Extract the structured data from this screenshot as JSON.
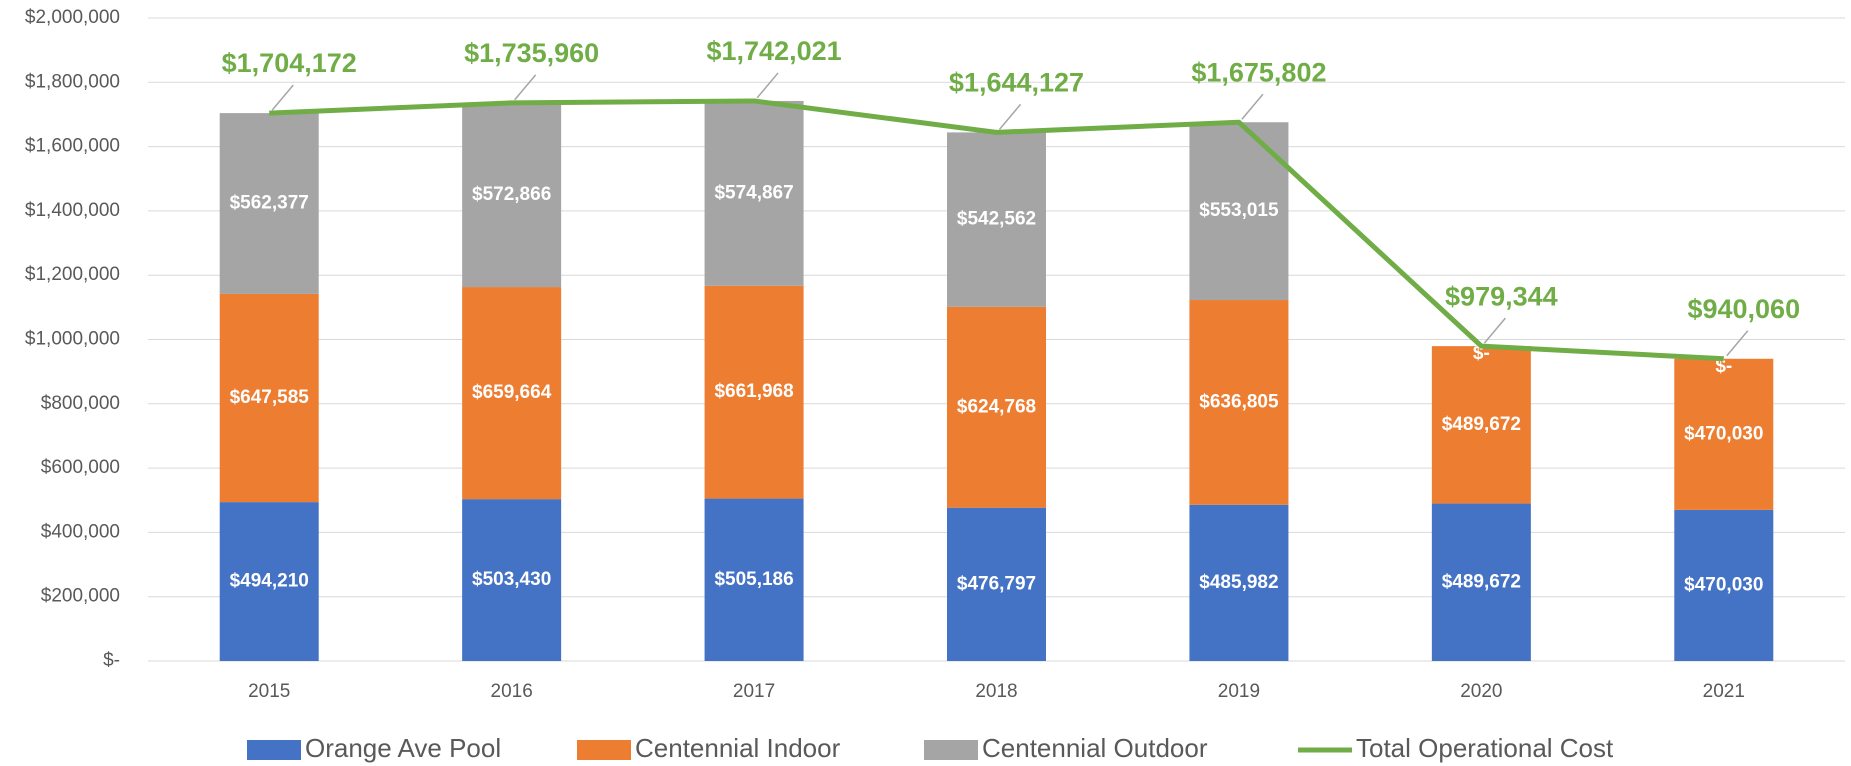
{
  "chart_data": {
    "type": "bar",
    "stacked": true,
    "categories": [
      "2015",
      "2016",
      "2017",
      "2018",
      "2019",
      "2020",
      "2021"
    ],
    "ylim": [
      0,
      2000000
    ],
    "yticks": [
      {
        "value": 0,
        "label": "$-"
      },
      {
        "value": 200000,
        "label": "$200,000"
      },
      {
        "value": 400000,
        "label": "$400,000"
      },
      {
        "value": 600000,
        "label": "$600,000"
      },
      {
        "value": 800000,
        "label": "$800,000"
      },
      {
        "value": 1000000,
        "label": "$1,000,000"
      },
      {
        "value": 1200000,
        "label": "$1,200,000"
      },
      {
        "value": 1400000,
        "label": "$1,400,000"
      },
      {
        "value": 1600000,
        "label": "$1,600,000"
      },
      {
        "value": 1800000,
        "label": "$1,800,000"
      },
      {
        "value": 2000000,
        "label": "$2,000,000"
      }
    ],
    "grid": true,
    "legend": "bottom",
    "series": [
      {
        "name": "Orange Ave Pool",
        "color": "#4472c4",
        "type": "bar",
        "values": [
          494210,
          503430,
          505186,
          476797,
          485982,
          489672,
          470030
        ],
        "value_labels": [
          "$494,210",
          "$503,430",
          "$505,186",
          "$476,797",
          "$485,982",
          "$489,672",
          "$470,030"
        ]
      },
      {
        "name": "Centennial Indoor",
        "color": "#ed7d31",
        "type": "bar",
        "values": [
          647585,
          659664,
          661968,
          624768,
          636805,
          489672,
          470030
        ],
        "value_labels": [
          "$647,585",
          "$659,664",
          "$661,968",
          "$624,768",
          "$636,805",
          "$489,672",
          "$470,030"
        ]
      },
      {
        "name": "Centennial Outdoor",
        "color": "#a5a5a5",
        "type": "bar",
        "values": [
          562377,
          572866,
          574867,
          542562,
          553015,
          0,
          0
        ],
        "value_labels": [
          "$562,377",
          "$572,866",
          "$574,867",
          "$542,562",
          "$553,015",
          "$-",
          "$-"
        ]
      },
      {
        "name": "Total Operational Cost",
        "color": "#70ad47",
        "type": "line",
        "values": [
          1704172,
          1735960,
          1742021,
          1644127,
          1675802,
          979344,
          940060
        ],
        "value_labels": [
          "$1,704,172",
          "$1,735,960",
          "$1,742,021",
          "$1,644,127",
          "$1,675,802",
          "$979,344",
          "$940,060"
        ]
      }
    ]
  }
}
